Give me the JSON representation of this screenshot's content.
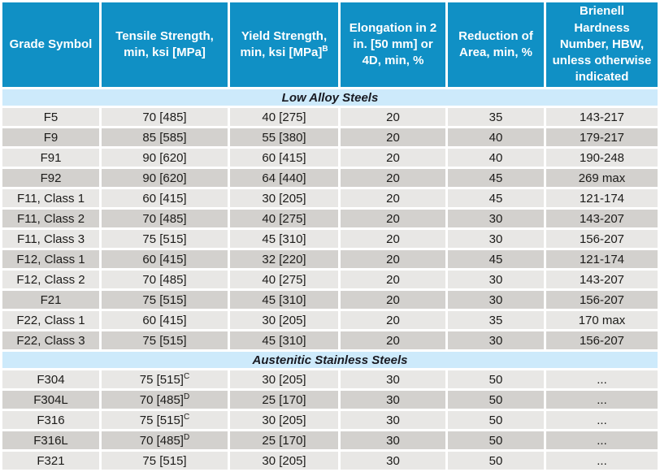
{
  "colors": {
    "header_bg": "#1090c5",
    "header_text": "#ffffff",
    "section_bg": "#cdeafb",
    "section_text": "#191a22",
    "row_light": "#e8e7e5",
    "row_dark": "#d3d1ce",
    "cell_text": "#1c1b19",
    "gap": "#ffffff"
  },
  "table": {
    "columns": [
      {
        "label": "Grade Symbol",
        "sup": ""
      },
      {
        "label": "Tensile Strength, min, ksi [MPa]",
        "sup": ""
      },
      {
        "label": "Yield Strength, min, ksi [MPa]",
        "sup": "B"
      },
      {
        "label": "Elongation in 2 in. [50 mm] or 4D, min, %",
        "sup": ""
      },
      {
        "label": "Reduction of Area, min, %",
        "sup": ""
      },
      {
        "label": "Brienell Hardness Number, HBW, unless otherwise indicated",
        "sup": ""
      }
    ],
    "sections": [
      {
        "title": "Low Alloy Steels",
        "rows": [
          {
            "grade": "F5",
            "tensile": "70 [485]",
            "tensile_sup": "",
            "yield": "40 [275]",
            "elongation": "20",
            "reduction": "35",
            "hardness": "143-217"
          },
          {
            "grade": "F9",
            "tensile": "85 [585]",
            "tensile_sup": "",
            "yield": "55 [380]",
            "elongation": "20",
            "reduction": "40",
            "hardness": "179-217"
          },
          {
            "grade": "F91",
            "tensile": "90 [620]",
            "tensile_sup": "",
            "yield": "60 [415]",
            "elongation": "20",
            "reduction": "40",
            "hardness": "190-248"
          },
          {
            "grade": "F92",
            "tensile": "90 [620]",
            "tensile_sup": "",
            "yield": "64 [440]",
            "elongation": "20",
            "reduction": "45",
            "hardness": "269 max"
          },
          {
            "grade": "F11, Class 1",
            "tensile": "60 [415]",
            "tensile_sup": "",
            "yield": "30 [205]",
            "elongation": "20",
            "reduction": "45",
            "hardness": "121-174"
          },
          {
            "grade": "F11, Class 2",
            "tensile": "70 [485]",
            "tensile_sup": "",
            "yield": "40 [275]",
            "elongation": "20",
            "reduction": "30",
            "hardness": "143-207"
          },
          {
            "grade": "F11, Class 3",
            "tensile": "75 [515]",
            "tensile_sup": "",
            "yield": "45 [310]",
            "elongation": "20",
            "reduction": "30",
            "hardness": "156-207"
          },
          {
            "grade": "F12, Class 1",
            "tensile": "60 [415]",
            "tensile_sup": "",
            "yield": "32 [220]",
            "elongation": "20",
            "reduction": "45",
            "hardness": "121-174"
          },
          {
            "grade": "F12, Class 2",
            "tensile": "70 [485]",
            "tensile_sup": "",
            "yield": "40 [275]",
            "elongation": "20",
            "reduction": "30",
            "hardness": "143-207"
          },
          {
            "grade": "F21",
            "tensile": "75 [515]",
            "tensile_sup": "",
            "yield": "45 [310]",
            "elongation": "20",
            "reduction": "30",
            "hardness": "156-207"
          },
          {
            "grade": "F22, Class 1",
            "tensile": "60 [415]",
            "tensile_sup": "",
            "yield": "30 [205]",
            "elongation": "20",
            "reduction": "35",
            "hardness": "170 max"
          },
          {
            "grade": "F22, Class 3",
            "tensile": "75 [515]",
            "tensile_sup": "",
            "yield": "45 [310]",
            "elongation": "20",
            "reduction": "30",
            "hardness": "156-207"
          }
        ]
      },
      {
        "title": "Austenitic Stainless Steels",
        "rows": [
          {
            "grade": "F304",
            "tensile": "75 [515]",
            "tensile_sup": "C",
            "yield": "30 [205]",
            "elongation": "30",
            "reduction": "50",
            "hardness": "..."
          },
          {
            "grade": "F304L",
            "tensile": "70 [485]",
            "tensile_sup": "D",
            "yield": "25 [170]",
            "elongation": "30",
            "reduction": "50",
            "hardness": "..."
          },
          {
            "grade": "F316",
            "tensile": "75 [515]",
            "tensile_sup": "C",
            "yield": "30 [205]",
            "elongation": "30",
            "reduction": "50",
            "hardness": "..."
          },
          {
            "grade": "F316L",
            "tensile": "70 [485]",
            "tensile_sup": "D",
            "yield": "25 [170]",
            "elongation": "30",
            "reduction": "50",
            "hardness": "..."
          },
          {
            "grade": "F321",
            "tensile": "75 [515]",
            "tensile_sup": "",
            "yield": "30 [205]",
            "elongation": "30",
            "reduction": "50",
            "hardness": "..."
          }
        ]
      }
    ]
  }
}
